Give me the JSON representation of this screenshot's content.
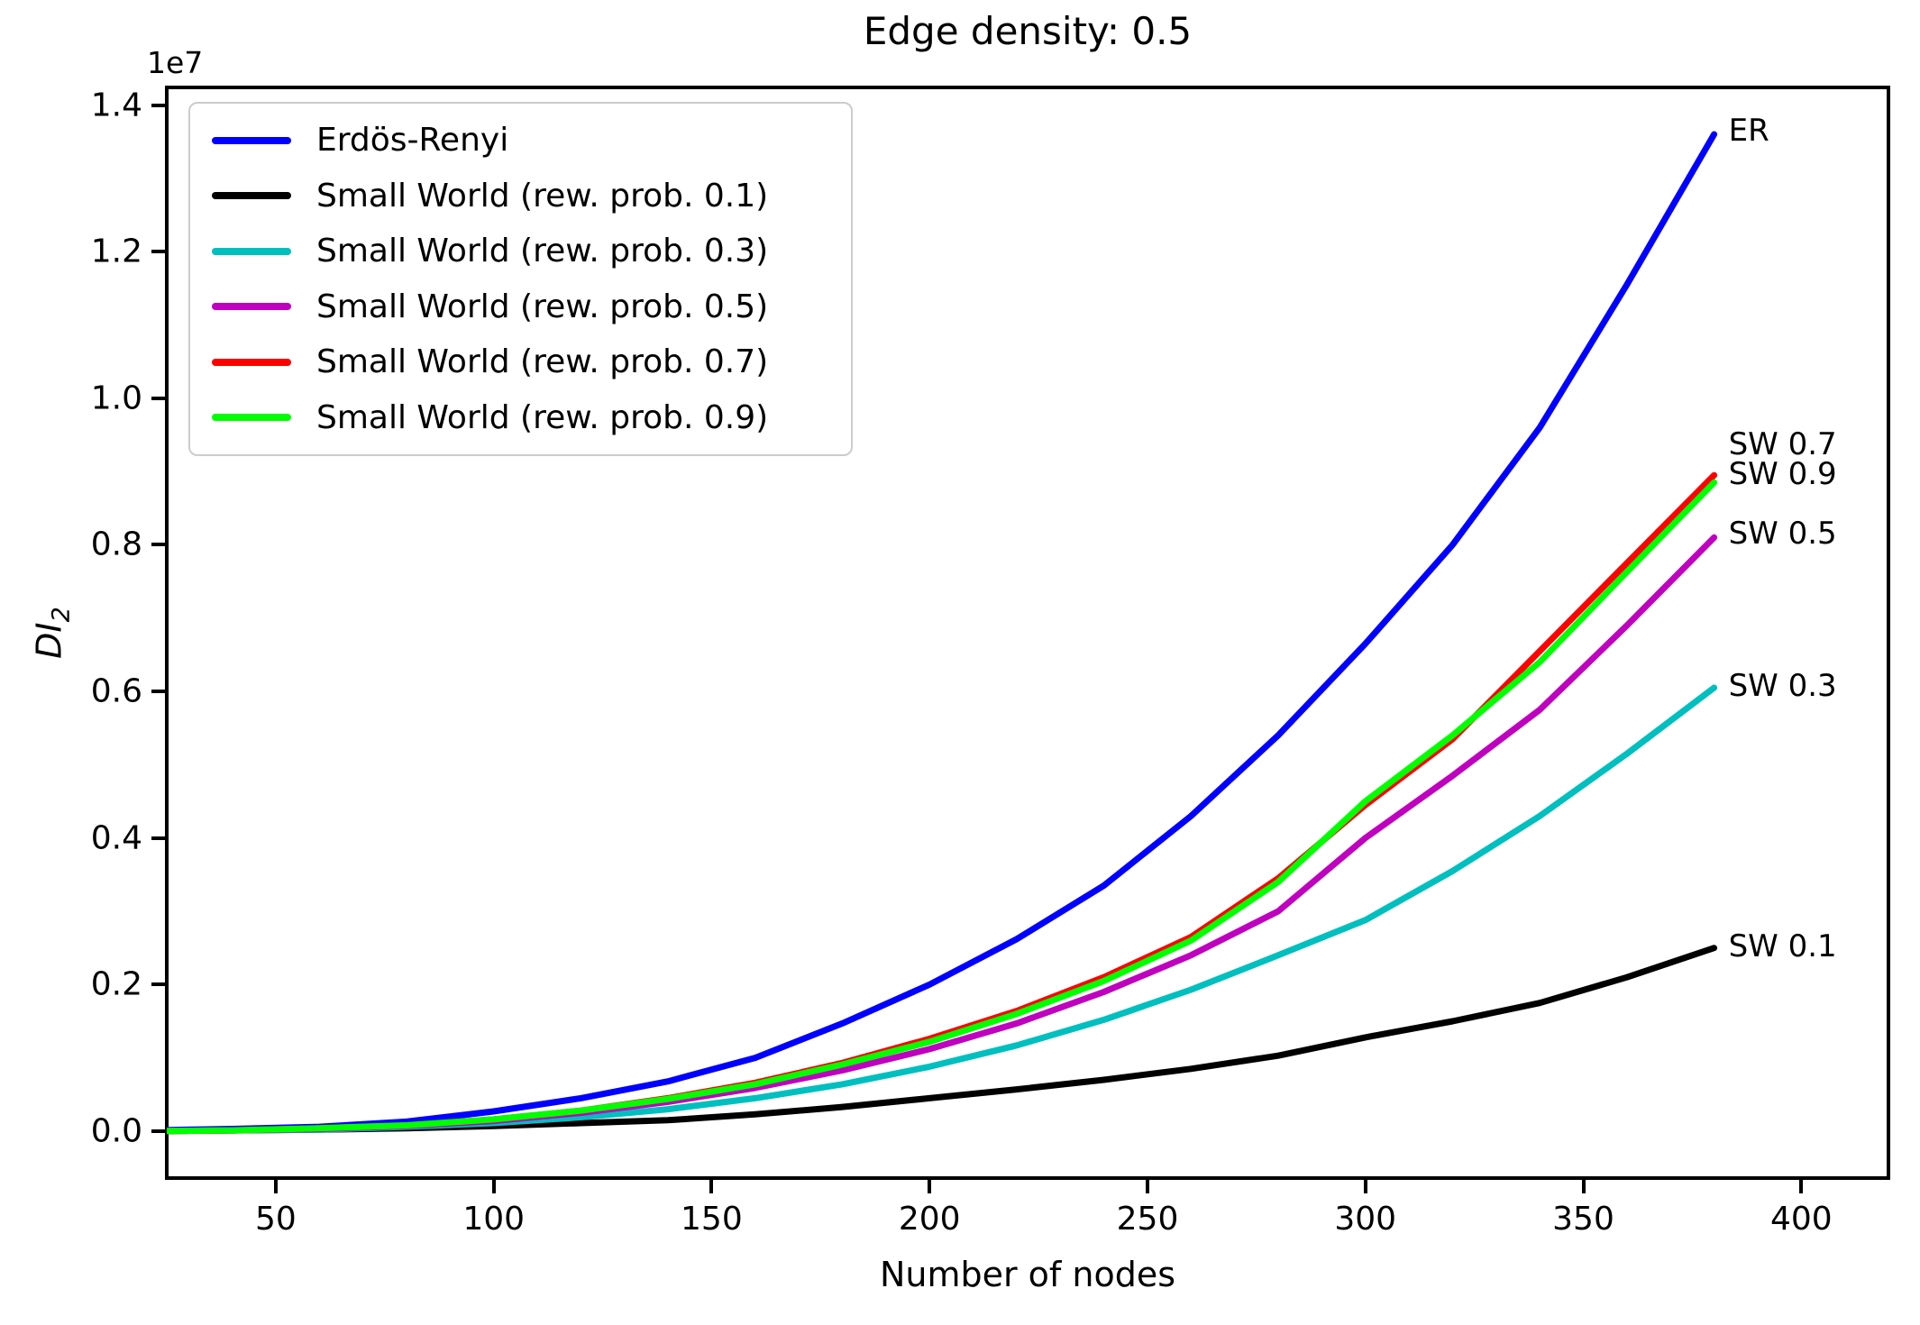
{
  "figure": {
    "title": "Edge density: 0.5"
  },
  "chart_data": {
    "type": "line",
    "title": "Edge density: 0.5",
    "xlabel": "Number of nodes",
    "ylabel_base": "DI",
    "ylabel_subscript": "2",
    "offset_text": "1e7",
    "grid": false,
    "legend_position": "upper left",
    "xlim": [
      25,
      420
    ],
    "ylim_1e7": [
      -0.064,
      1.424
    ],
    "x_tick_labels": [
      "50",
      "100",
      "150",
      "200",
      "250",
      "300",
      "350",
      "400"
    ],
    "y_tick_labels": [
      "0.0",
      "0.2",
      "0.4",
      "0.6",
      "0.8",
      "1.0",
      "1.2",
      "1.4"
    ],
    "x": [
      20,
      40,
      60,
      80,
      100,
      120,
      140,
      160,
      180,
      200,
      220,
      240,
      260,
      280,
      300,
      320,
      340,
      360,
      380
    ],
    "series": [
      {
        "id": "er",
        "legend_label": "Erdös-Renyi",
        "end_label": "ER",
        "color": "#0000ff",
        "values_1e7": [
          0.001,
          0.003,
          0.006,
          0.013,
          0.027,
          0.045,
          0.068,
          0.1,
          0.147,
          0.2,
          0.262,
          0.335,
          0.43,
          0.54,
          0.665,
          0.8,
          0.96,
          1.155,
          1.36
        ]
      },
      {
        "id": "sw01",
        "legend_label": "Small World (rew. prob. 0.1)",
        "end_label": "SW 0.1",
        "color": "#000000",
        "values_1e7": [
          0.0,
          0.001,
          0.002,
          0.004,
          0.007,
          0.011,
          0.015,
          0.023,
          0.033,
          0.045,
          0.057,
          0.07,
          0.085,
          0.103,
          0.128,
          0.15,
          0.175,
          0.21,
          0.25
        ]
      },
      {
        "id": "sw03",
        "legend_label": "Small World (rew. prob. 0.3)",
        "end_label": "SW 0.3",
        "color": "#00bfbf",
        "values_1e7": [
          0.0,
          0.001,
          0.002,
          0.006,
          0.011,
          0.019,
          0.03,
          0.045,
          0.064,
          0.088,
          0.117,
          0.152,
          0.193,
          0.24,
          0.288,
          0.355,
          0.43,
          0.515,
          0.605
        ]
      },
      {
        "id": "sw05",
        "legend_label": "Small World (rew. prob. 0.5)",
        "end_label": "SW 0.5",
        "color": "#bf00bf",
        "values_1e7": [
          0.0,
          0.001,
          0.003,
          0.007,
          0.014,
          0.025,
          0.04,
          0.059,
          0.083,
          0.112,
          0.147,
          0.19,
          0.24,
          0.3,
          0.4,
          0.485,
          0.575,
          0.69,
          0.81
        ]
      },
      {
        "id": "sw07",
        "legend_label": "Small World (rew. prob. 0.7)",
        "end_label": "SW 0.7",
        "color": "#ff0000",
        "values_1e7": [
          0.0,
          0.001,
          0.004,
          0.008,
          0.016,
          0.028,
          0.045,
          0.066,
          0.093,
          0.126,
          0.164,
          0.21,
          0.265,
          0.345,
          0.445,
          0.535,
          0.655,
          0.775,
          0.895
        ]
      },
      {
        "id": "sw09",
        "legend_label": "Small World (rew. prob. 0.9)",
        "end_label": "SW 0.9",
        "color": "#00ff00",
        "values_1e7": [
          0.0,
          0.001,
          0.004,
          0.008,
          0.016,
          0.028,
          0.044,
          0.064,
          0.091,
          0.122,
          0.16,
          0.205,
          0.26,
          0.34,
          0.45,
          0.54,
          0.64,
          0.763,
          0.885
        ]
      }
    ]
  }
}
